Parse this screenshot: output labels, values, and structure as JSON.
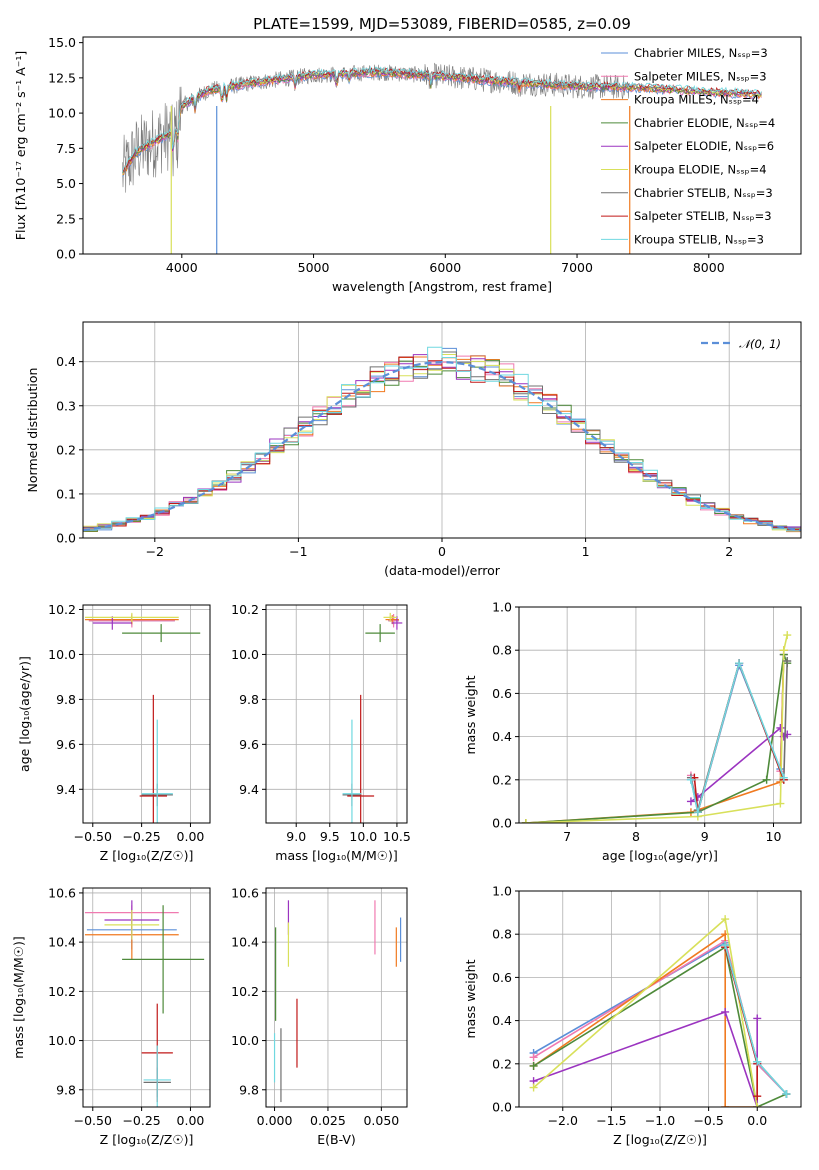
{
  "colors": {
    "chabrier_miles": "#5b8fd8",
    "salpeter_miles": "#f07ab0",
    "kroupa_miles": "#f07a20",
    "chabrier_elodie": "#4e8a3a",
    "salpeter_elodie": "#9b34c0",
    "kroupa_elodie": "#d8e05a",
    "chabrier_stelib": "#707070",
    "salpeter_stelib": "#c01818",
    "kroupa_stelib": "#70d8e0",
    "normal_curve": "#5b8fd8"
  },
  "chart_data": [
    {
      "id": "spectrum",
      "type": "line",
      "title": "PLATE=1599, MJD=53089, FIBERID=0585, z=0.09",
      "xlabel": "wavelength [Angstrom, rest frame]",
      "ylabel": "Flux [fλ10⁻¹⁷ erg cm⁻² s⁻¹ A⁻¹]",
      "xlim": [
        3250,
        8700
      ],
      "ylim": [
        0,
        15.4
      ],
      "xticks": [
        "4000",
        "5000",
        "6000",
        "7000",
        "8000"
      ],
      "xtick_values": [
        4000,
        5000,
        6000,
        7000,
        8000
      ],
      "yticks": [
        "0.0",
        "2.5",
        "5.0",
        "7.5",
        "10.0",
        "12.5",
        "15.0"
      ],
      "ytick_values": [
        0,
        2.5,
        5,
        7.5,
        10,
        12.5,
        15
      ],
      "legend_position": "right",
      "legend": [
        "Chabrier MILES, Nₛₛₚ=3",
        "Salpeter MILES, Nₛₛₚ=3",
        "Kroupa MILES, Nₛₛₚ=4",
        "Chabrier ELODIE, Nₛₛₚ=4",
        "Salpeter ELODIE, Nₛₛₚ=6",
        "Kroupa ELODIE, Nₛₛₚ=4",
        "Chabrier STELIB, Nₛₛₚ=3",
        "Salpeter STELIB, Nₛₛₚ=3",
        "Kroupa STELIB, Nₛₛₚ=3"
      ],
      "continuum_points": [
        [
          3550,
          5.7
        ],
        [
          3650,
          7.2
        ],
        [
          3800,
          8.0
        ],
        [
          3950,
          8.7
        ],
        [
          4000,
          10.5
        ],
        [
          4200,
          11.6
        ],
        [
          4500,
          12.1
        ],
        [
          5000,
          12.7
        ],
        [
          5500,
          12.9
        ],
        [
          6000,
          12.6
        ],
        [
          6500,
          12.2
        ],
        [
          7000,
          11.9
        ],
        [
          7500,
          11.8
        ],
        [
          8000,
          11.5
        ],
        [
          8400,
          11.3
        ]
      ],
      "model_range_angstrom": [
        3550,
        8400
      ],
      "observed_range_angstrom": [
        3550,
        7400
      ]
    },
    {
      "id": "residuals",
      "type": "histogram",
      "xlabel": "(data-model)/error",
      "ylabel": "Normed distribution",
      "xlim": [
        -2.5,
        2.5
      ],
      "ylim": [
        0,
        0.49
      ],
      "xticks": [
        "−2",
        "−1",
        "0",
        "1",
        "2"
      ],
      "xtick_values": [
        -2,
        -1,
        0,
        1,
        2
      ],
      "yticks": [
        "0.0",
        "0.1",
        "0.2",
        "0.3",
        "0.4"
      ],
      "ytick_values": [
        0,
        0.1,
        0.2,
        0.3,
        0.4
      ],
      "legend": [
        "𝒩(0, 1)"
      ],
      "legend_position": "top-right",
      "bin_width": 0.1,
      "grid": true
    },
    {
      "id": "age-vs-z",
      "type": "errorbar",
      "xlabel": "Z [log₁₀(Z/Z☉)]",
      "ylabel": "age  [log₁₀(age/yr)]",
      "xlim": [
        -0.55,
        0.1
      ],
      "ylim": [
        9.25,
        10.22
      ],
      "xticks": [
        "−0.50",
        "−0.25",
        "0.00"
      ],
      "xtick_values": [
        -0.5,
        -0.25,
        0
      ],
      "yticks": [
        "9.4",
        "9.6",
        "9.8",
        "10.0",
        "10.2"
      ],
      "ytick_values": [
        9.4,
        9.6,
        9.8,
        10.0,
        10.2
      ],
      "grid": true,
      "points": [
        {
          "x": -0.3,
          "xerr": 0.22,
          "y": 10.15,
          "yerr": 0.02,
          "c": "chabrier_miles"
        },
        {
          "x": -0.3,
          "xerr": 0.22,
          "y": 10.15,
          "yerr": 0.03,
          "c": "salpeter_miles"
        },
        {
          "x": -0.3,
          "xerr": 0.24,
          "y": 10.155,
          "yerr": 0.02,
          "c": "kroupa_miles"
        },
        {
          "x": -0.15,
          "xerr": 0.2,
          "y": 10.095,
          "yerr": 0.04,
          "c": "chabrier_elodie"
        },
        {
          "x": -0.4,
          "xerr": 0.1,
          "y": 10.14,
          "yerr": 0.03,
          "c": "salpeter_elodie"
        },
        {
          "x": -0.3,
          "xerr": 0.24,
          "y": 10.165,
          "yerr": 0.02,
          "c": "kroupa_elodie"
        },
        {
          "x": -0.17,
          "xerr": 0.08,
          "y": 9.375,
          "yerr": 0.05,
          "c": "chabrier_stelib"
        },
        {
          "x": -0.19,
          "xerr": 0.07,
          "y": 9.37,
          "yerr": 0.45,
          "c": "salpeter_stelib"
        },
        {
          "x": -0.17,
          "xerr": 0.08,
          "y": 9.38,
          "yerr": 0.33,
          "c": "kroupa_stelib"
        }
      ]
    },
    {
      "id": "age-vs-mass",
      "type": "errorbar",
      "xlabel": "mass [log₁₀(M/M☉)]",
      "ylabel": "",
      "xlim": [
        8.55,
        10.65
      ],
      "ylim": [
        9.25,
        10.22
      ],
      "xticks": [
        "9.0",
        "9.5",
        "10.0",
        "10.5"
      ],
      "xtick_values": [
        9.0,
        9.5,
        10.0,
        10.5
      ],
      "yticks": [
        "9.4",
        "9.6",
        "9.8",
        "10.0",
        "10.2"
      ],
      "ytick_values": [
        9.4,
        9.6,
        9.8,
        10.0,
        10.2
      ],
      "grid": true,
      "points": [
        {
          "x": 10.45,
          "xerr": 0.08,
          "y": 10.15,
          "yerr": 0.02,
          "c": "chabrier_miles"
        },
        {
          "x": 10.45,
          "xerr": 0.08,
          "y": 10.15,
          "yerr": 0.03,
          "c": "salpeter_miles"
        },
        {
          "x": 10.43,
          "xerr": 0.1,
          "y": 10.155,
          "yerr": 0.02,
          "c": "kroupa_miles"
        },
        {
          "x": 10.25,
          "xerr": 0.22,
          "y": 10.095,
          "yerr": 0.04,
          "c": "chabrier_elodie"
        },
        {
          "x": 10.5,
          "xerr": 0.08,
          "y": 10.14,
          "yerr": 0.03,
          "c": "salpeter_elodie"
        },
        {
          "x": 10.4,
          "xerr": 0.1,
          "y": 10.165,
          "yerr": 0.02,
          "c": "kroupa_elodie"
        },
        {
          "x": 9.83,
          "xerr": 0.14,
          "y": 9.375,
          "yerr": 0.05,
          "c": "chabrier_stelib"
        },
        {
          "x": 9.96,
          "xerr": 0.2,
          "y": 9.37,
          "yerr": 0.45,
          "c": "salpeter_stelib"
        },
        {
          "x": 9.83,
          "xerr": 0.14,
          "y": 9.38,
          "yerr": 0.33,
          "c": "kroupa_stelib"
        }
      ]
    },
    {
      "id": "weight-vs-age",
      "type": "line",
      "xlabel": "age  [log₁₀(age/yr)]",
      "ylabel": "mass weight",
      "xlim": [
        6.3,
        10.4
      ],
      "ylim": [
        0,
        1.0
      ],
      "xticks": [
        "7",
        "8",
        "9",
        "10"
      ],
      "xtick_values": [
        7,
        8,
        9,
        10
      ],
      "yticks": [
        "0.0",
        "0.2",
        "0.4",
        "0.6",
        "0.8",
        "1.0"
      ],
      "ytick_values": [
        0,
        0.2,
        0.4,
        0.6,
        0.8,
        1.0
      ],
      "grid": true,
      "series": [
        {
          "c": "chabrier_miles",
          "x": [
            8.8,
            8.9,
            9.5,
            10.1,
            10.15
          ],
          "y": [
            0.2,
            0.05,
            0.73,
            0.25,
            0.78
          ]
        },
        {
          "c": "salpeter_miles",
          "x": [
            8.8,
            8.9,
            9.5,
            10.1,
            10.15
          ],
          "y": [
            0.22,
            0.05,
            0.74,
            0.24,
            0.78
          ]
        },
        {
          "c": "kroupa_miles",
          "x": [
            6.4,
            8.8,
            10.1,
            10.15
          ],
          "y": [
            0.0,
            0.05,
            0.19,
            0.8
          ]
        },
        {
          "c": "chabrier_elodie",
          "x": [
            6.4,
            8.9,
            9.9,
            10.15,
            10.2
          ],
          "y": [
            0.0,
            0.05,
            0.2,
            0.78,
            0.74
          ]
        },
        {
          "c": "salpeter_elodie",
          "x": [
            8.8,
            8.9,
            10.1,
            10.15,
            10.2
          ],
          "y": [
            0.1,
            0.12,
            0.44,
            0.4,
            0.41
          ]
        },
        {
          "c": "kroupa_elodie",
          "x": [
            6.4,
            8.9,
            10.1,
            10.15,
            10.2
          ],
          "y": [
            0.0,
            0.03,
            0.09,
            0.8,
            0.87
          ]
        },
        {
          "c": "chabrier_stelib",
          "x": [
            8.8,
            8.9,
            9.5,
            10.15,
            10.2
          ],
          "y": [
            0.21,
            0.06,
            0.74,
            0.2,
            0.75
          ]
        },
        {
          "c": "salpeter_stelib",
          "x": [
            8.85,
            8.9,
            9.5,
            10.15
          ],
          "y": [
            0.21,
            0.05,
            0.74,
            0.2
          ]
        },
        {
          "c": "kroupa_stelib",
          "x": [
            8.8,
            8.9,
            9.5,
            10.15
          ],
          "y": [
            0.2,
            0.05,
            0.74,
            0.21
          ]
        }
      ]
    },
    {
      "id": "mass-vs-z",
      "type": "errorbar",
      "xlabel": "Z [log₁₀(Z/Z☉)]",
      "ylabel": "mass [log₁₀(M/M☉)]",
      "xlim": [
        -0.55,
        0.1
      ],
      "ylim": [
        9.73,
        10.62
      ],
      "xticks": [
        "−0.50",
        "−0.25",
        "0.00"
      ],
      "xtick_values": [
        -0.5,
        -0.25,
        0
      ],
      "yticks": [
        "9.8",
        "10.0",
        "10.2",
        "10.4",
        "10.6"
      ],
      "ytick_values": [
        9.8,
        10.0,
        10.2,
        10.4,
        10.6
      ],
      "grid": true,
      "points": [
        {
          "x": -0.3,
          "xerr": 0.23,
          "y": 10.45,
          "yerr": 0.08,
          "c": "chabrier_miles"
        },
        {
          "x": -0.3,
          "xerr": 0.24,
          "y": 10.52,
          "yerr": 0.03,
          "c": "salpeter_miles"
        },
        {
          "x": -0.3,
          "xerr": 0.24,
          "y": 10.43,
          "yerr": 0.1,
          "c": "kroupa_miles"
        },
        {
          "x": -0.14,
          "xerr": 0.21,
          "y": 10.33,
          "yerr": 0.22,
          "c": "chabrier_elodie"
        },
        {
          "x": -0.3,
          "xerr": 0.14,
          "y": 10.49,
          "yerr": 0.08,
          "c": "salpeter_elodie"
        },
        {
          "x": -0.3,
          "xerr": 0.14,
          "y": 10.47,
          "yerr": 0.06,
          "c": "kroupa_elodie"
        },
        {
          "x": -0.17,
          "xerr": 0.07,
          "y": 9.83,
          "yerr": 0.06,
          "c": "chabrier_stelib"
        },
        {
          "x": -0.17,
          "xerr": 0.08,
          "y": 9.95,
          "yerr": 0.2,
          "c": "salpeter_stelib"
        },
        {
          "x": -0.17,
          "xerr": 0.07,
          "y": 9.84,
          "yerr": 0.14,
          "c": "kroupa_stelib"
        }
      ]
    },
    {
      "id": "mass-vs-ebv",
      "type": "errorbar",
      "xlabel": "E(B-V)",
      "ylabel": "",
      "xlim": [
        -0.004,
        0.062
      ],
      "ylim": [
        9.73,
        10.62
      ],
      "xticks": [
        "0.000",
        "0.025",
        "0.050"
      ],
      "xtick_values": [
        0,
        0.025,
        0.05
      ],
      "yticks": [
        "9.8",
        "10.0",
        "10.2",
        "10.4",
        "10.6"
      ],
      "ytick_values": [
        9.8,
        10.0,
        10.2,
        10.4,
        10.6
      ],
      "grid": true,
      "points": [
        {
          "x": 0.059,
          "xerr": 0,
          "y": 10.41,
          "yerr": 0.09,
          "c": "chabrier_miles"
        },
        {
          "x": 0.047,
          "xerr": 0,
          "y": 10.46,
          "yerr": 0.11,
          "c": "salpeter_miles"
        },
        {
          "x": 0.057,
          "xerr": 0,
          "y": 10.38,
          "yerr": 0.08,
          "c": "kroupa_miles"
        },
        {
          "x": 0.0005,
          "xerr": 0,
          "y": 10.27,
          "yerr": 0.19,
          "c": "chabrier_elodie"
        },
        {
          "x": 0.0065,
          "xerr": 0,
          "y": 10.5,
          "yerr": 0.07,
          "c": "salpeter_elodie"
        },
        {
          "x": 0.0065,
          "xerr": 0,
          "y": 10.39,
          "yerr": 0.09,
          "c": "kroupa_elodie"
        },
        {
          "x": 0.003,
          "xerr": 0,
          "y": 9.9,
          "yerr": 0.15,
          "c": "chabrier_stelib"
        },
        {
          "x": 0.0105,
          "xerr": 0,
          "y": 10.03,
          "yerr": 0.14,
          "c": "salpeter_stelib"
        },
        {
          "x": 0.0,
          "xerr": 0,
          "y": 9.93,
          "yerr": 0.1,
          "c": "kroupa_stelib"
        }
      ]
    },
    {
      "id": "weight-vs-z",
      "type": "line",
      "xlabel": "Z [log₁₀(Z/Z☉)]",
      "ylabel": "mass weight",
      "xlim": [
        -2.45,
        0.45
      ],
      "ylim": [
        0,
        1.0
      ],
      "xticks": [
        "−2.0",
        "−1.5",
        "−1.0",
        "−0.5",
        "0.0"
      ],
      "xtick_values": [
        -2,
        -1.5,
        -1,
        -0.5,
        0
      ],
      "yticks": [
        "0.0",
        "0.2",
        "0.4",
        "0.6",
        "0.8",
        "1.0"
      ],
      "ytick_values": [
        0,
        0.2,
        0.4,
        0.6,
        0.8,
        1.0
      ],
      "grid": true,
      "series": [
        {
          "c": "chabrier_miles",
          "x": [
            -2.3,
            -0.33,
            0.0,
            0.3
          ],
          "y": [
            0.25,
            0.76,
            0.2,
            0.06
          ]
        },
        {
          "c": "salpeter_miles",
          "x": [
            -2.3,
            -0.33,
            0.0,
            0.3
          ],
          "y": [
            0.23,
            0.77,
            0.2,
            0.06
          ]
        },
        {
          "c": "kroupa_miles",
          "x": [
            -2.3,
            -0.33,
            -0.33,
            0.0
          ],
          "y": [
            0.19,
            0.8,
            0.0,
            0.0
          ]
        },
        {
          "c": "chabrier_elodie",
          "x": [
            -2.3,
            -0.33,
            0.0,
            0.3
          ],
          "y": [
            0.19,
            0.74,
            0.0,
            0.06
          ]
        },
        {
          "c": "salpeter_elodie",
          "x": [
            -2.3,
            -0.33,
            0.0,
            0.0
          ],
          "y": [
            0.12,
            0.44,
            0.0,
            0.41
          ]
        },
        {
          "c": "kroupa_elodie",
          "x": [
            -2.3,
            -0.33,
            0.0
          ],
          "y": [
            0.09,
            0.87,
            0.0
          ]
        },
        {
          "c": "chabrier_stelib",
          "x": [
            -0.33,
            0.0,
            0.3
          ],
          "y": [
            0.75,
            0.21,
            0.06
          ]
        },
        {
          "c": "salpeter_stelib",
          "x": [
            -0.33,
            0.0,
            0.0
          ],
          "y": [
            0.74,
            0.2,
            0.05
          ]
        },
        {
          "c": "kroupa_stelib",
          "x": [
            -0.33,
            0.0,
            0.3
          ],
          "y": [
            0.75,
            0.21,
            0.06
          ]
        }
      ]
    }
  ]
}
